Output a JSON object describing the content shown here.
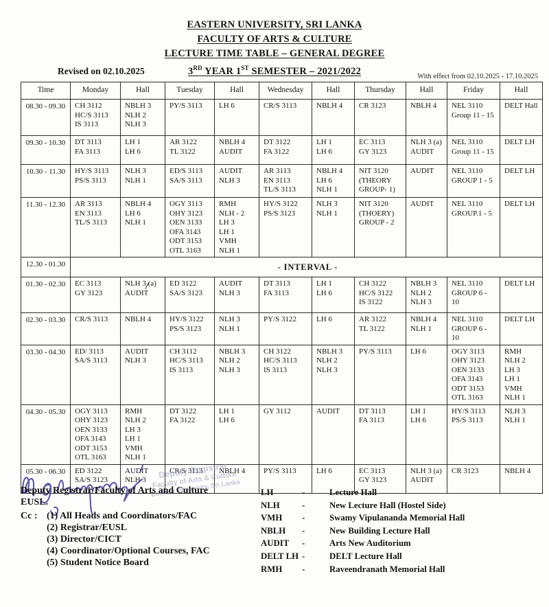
{
  "page": {
    "titles": [
      "EASTERN UNIVERSITY, SRI LANKA",
      "FACULTY OF ARTS & CULTURE",
      "LECTURE TIME TABLE – GENERAL DEGREE"
    ],
    "year_line": {
      "n1": "3",
      "s1": "RD",
      "mid": " YEAR 1",
      "s2": "ST",
      "rest": " SEMESTER – 2021/2022"
    },
    "revised": "Revised on 02.10.2025",
    "with_effect": "With effect from 02.10.2025 - 17.10.2025"
  },
  "timetable": {
    "columns": [
      "Time",
      "Monday",
      "Hall",
      "Tuesday",
      "Hall",
      "Wednesday",
      "Hall",
      "Thursday",
      "Hall",
      "Friday",
      "Hall"
    ],
    "rows": [
      {
        "time": "08.30 - 09.30",
        "cells": [
          [
            "CH 3112",
            "HC/S 3113",
            "IS 3113"
          ],
          [
            "NBLH 3",
            "NLH 2",
            "NLH 3"
          ],
          [
            "PY/S 3113"
          ],
          [
            "LH 6"
          ],
          [
            "CR/S 3113"
          ],
          [
            "NBLH 4"
          ],
          [
            "CR 3123"
          ],
          [
            "NBLH 4"
          ],
          [
            "NEL 3110",
            "Group 11 - 15"
          ],
          [
            "DELT Hall"
          ]
        ]
      },
      {
        "time": "09.30 - 10.30",
        "cells": [
          [
            "DT 3113",
            "FA 3113"
          ],
          [
            "LH 1",
            "LH 6"
          ],
          [
            "AR 3122",
            "TL 3122"
          ],
          [
            "NBLH 4",
            "AUDIT"
          ],
          [
            "DT 3122",
            "FA 3122"
          ],
          [
            "LH 1",
            "LH 6"
          ],
          [
            "EC 3113",
            "GY 3123"
          ],
          [
            "NLH 3 (a)",
            "AUDIT"
          ],
          [
            "NEL 3110",
            "Group 11 - 15"
          ],
          [
            "DELT LH"
          ]
        ]
      },
      {
        "time": "10.30 - 11.30",
        "cells": [
          [
            "HY/S 3113",
            "PS/S 3113"
          ],
          [
            "NLH 3",
            "NLH 1"
          ],
          [
            "ED/S 3113",
            "SA/S 3113"
          ],
          [
            "AUDIT",
            "NLH 3"
          ],
          [
            "AR 3113",
            "EN 3113",
            "TL/S 3113"
          ],
          [
            "NBLH 4",
            "LH 6",
            "NLH 1"
          ],
          [
            "NIT 3120",
            "(THEORY",
            "GROUP- 1)"
          ],
          [
            "AUDIT"
          ],
          [
            "NEL 3110",
            "GROUP 1 - 5"
          ],
          [
            "DELT LH"
          ]
        ]
      },
      {
        "time": "11.30 - 12.30",
        "cells": [
          [
            "AR 3113",
            "EN 3113",
            "TL/S 3113"
          ],
          [
            "NBLH 4",
            "LH 6",
            "NLH 1"
          ],
          [
            "OGY 3113",
            "OHY 3123",
            "OEN 3133",
            "OFA 3143",
            "ODT 3153",
            "OTL 3163"
          ],
          [
            "RMH",
            "NLH - 2",
            "LH 3",
            "LH 1",
            "VMH",
            "NLH 1"
          ],
          [
            "HY/S 3122",
            "PS/S 3123"
          ],
          [
            "NLH 3",
            "NLH 1"
          ],
          [
            "NIT 3120",
            "(THOERY)",
            "GROUP - 2"
          ],
          [
            "AUDIT"
          ],
          [
            "NEL 3110",
            "GROUP.1 - 5"
          ],
          [
            "DELT LH"
          ]
        ]
      },
      {
        "time": "12.30 - 01.30",
        "interval": "- INTERVAL -"
      },
      {
        "time": "01.30 - 02.30",
        "cells": [
          [
            "EC 3113",
            "GY 3123"
          ],
          [
            "NLH 3 (a)",
            "AUDIT"
          ],
          [
            "ED 3122",
            "SA/S 3123"
          ],
          [
            "AUDIT",
            "NLH 3"
          ],
          [
            "DT 3113",
            "FA 3113"
          ],
          [
            "LH 1",
            "LH 6"
          ],
          [
            "CH 3122",
            "HC/S 3122",
            "IS 3122"
          ],
          [
            "NBLH 3",
            "NLH 2",
            "NLH 3"
          ],
          [
            "NEL 3110",
            "GROUP 6 -",
            "10"
          ],
          [
            "DELT LH"
          ]
        ]
      },
      {
        "time": "02.30 - 03.30",
        "cells": [
          [
            "CR/S 3113"
          ],
          [
            "NBLH 4"
          ],
          [
            "HY/S 3122",
            "PS/S 3123"
          ],
          [
            "NLH 3",
            "NLH 1"
          ],
          [
            "PY/S 3122"
          ],
          [
            "LH 6"
          ],
          [
            "AR 3122",
            "TL 3122"
          ],
          [
            "NBLH 4",
            "NLH 1"
          ],
          [
            "NEL 3110",
            "GROUP 6 -",
            "10"
          ],
          [
            "DELT LH"
          ]
        ]
      },
      {
        "time": "03.30 - 04.30",
        "cells": [
          [
            "ED/ 3113",
            "SA/S 3113"
          ],
          [
            "AUDIT",
            "NLH 3"
          ],
          [
            "CH 3112",
            "HC/S 3113",
            "IS 3113"
          ],
          [
            "NBLH 3",
            "NLH 2",
            "NLH 3"
          ],
          [
            "CH 3122",
            "HC/S 3113",
            "IS 3113"
          ],
          [
            "NBLH 3",
            "NLH 2",
            "NLH 3"
          ],
          [
            "PY/S 3113"
          ],
          [
            "LH 6"
          ],
          [
            "OGY 3113",
            "OHY 3123",
            "OEN 3133",
            "OFA 3143",
            "ODT 3153",
            "OTL 3163"
          ],
          [
            "RMH",
            "NLH 2",
            "LH 3",
            "LH 1",
            "VMH",
            "NLH 1"
          ]
        ]
      },
      {
        "time": "04.30 - 05.30",
        "cells": [
          [
            "OGY 3113",
            "OHY 3123",
            "OEN 3133",
            "OFA 3143",
            "ODT 3153",
            "OTL 3163"
          ],
          [
            "RMH",
            "NLH 2",
            "LH 3",
            "LH 1",
            "VMH",
            "NLH 1"
          ],
          [
            "DT 3122",
            "FA 3122"
          ],
          [
            "LH 1",
            "LH 6"
          ],
          [
            "GY 3112"
          ],
          [
            "AUDIT"
          ],
          [
            "DT 3113",
            "FA 3113"
          ],
          [
            "LH 1",
            "LH 6"
          ],
          [
            "HY/S 3113",
            "PS/S 3113"
          ],
          [
            "NLH 3",
            "NLH 1"
          ]
        ]
      },
      {
        "time": "05.30 - 06.30",
        "cells": [
          [
            "ED 3122",
            "SA/S 3123"
          ],
          [
            "AUDIT",
            "NLH 3"
          ],
          [
            "CR/S 3113"
          ],
          [
            "NBLH 4"
          ],
          [
            "PY/S 3113"
          ],
          [
            "LH 6"
          ],
          [
            "EC 3113",
            "GY 3123"
          ],
          [
            "NLH 3 (a)",
            "AUDIT"
          ],
          [
            "CR 3123"
          ],
          [
            "NBLH 4"
          ]
        ]
      }
    ]
  },
  "footer": {
    "signed_by": "Deputy Registrar/Faculty of Arts and Culture",
    "org": "EUSL.",
    "cc_label": "Cc :",
    "cc_items": [
      "(1) All Heads and Coordinators/FAC",
      "(2) Registrar/EUSL",
      "(3) Director/CICT",
      "(4) Coordinator/Optional Courses, FAC",
      "(5) Student Notice Board"
    ],
    "stamp_lines": [
      "Deputy Registrar",
      "Faculty of Arts & Culture",
      "Eastern University, Sri Lanka"
    ]
  },
  "legend": {
    "separator": "-",
    "items": [
      {
        "abbr": "LH",
        "name": "Lecture Hall"
      },
      {
        "abbr": "NLH",
        "name": "New Lecture Hall (Hostel Side)"
      },
      {
        "abbr": "VMH",
        "name": "Swamy Vipulananda Memorial Hall"
      },
      {
        "abbr": "NBLH",
        "name": "New Building Lecture Hall"
      },
      {
        "abbr": "AUDIT",
        "name": "Arts New Auditorium"
      },
      {
        "abbr": "DELT LH",
        "name": "DELT Lecture Hall"
      },
      {
        "abbr": "RMH",
        "name": "Raveendranath Memorial Hall"
      }
    ]
  },
  "artifacts": {
    "pen_slash": "/",
    "ink_color": "#4a44a6",
    "stamp_color": "#959ab5"
  }
}
